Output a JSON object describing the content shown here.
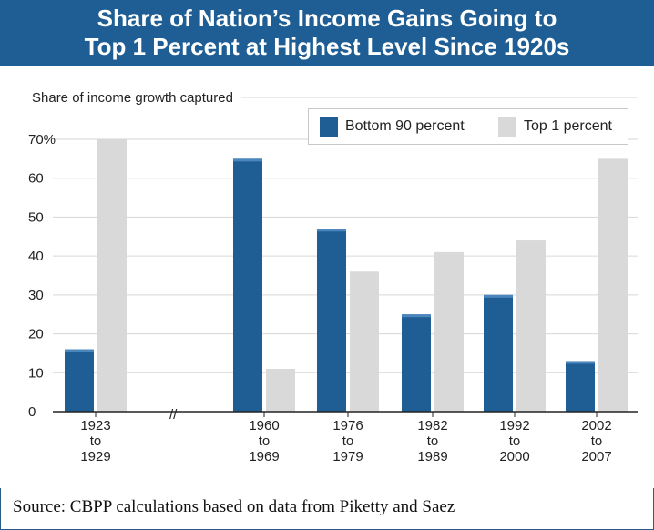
{
  "title": {
    "line1": "Share of Nation’s Income Gains Going to",
    "line2": "Top 1 Percent at Highest Level Since 1920s"
  },
  "source": "Source: CBPP calculations based on data from Piketty and Saez",
  "colors": {
    "title_bg": "#1f5e94",
    "bottom90": "#1f5e94",
    "top1": "#d9d9d9"
  },
  "chart_data": {
    "type": "bar",
    "title": "Share of Nation’s Income Gains Going to Top 1 Percent at Highest Level Since 1920s",
    "ylabel": "Share of income growth captured",
    "ylim": [
      0,
      70
    ],
    "y_ticks": [
      "0",
      "10",
      "20",
      "30",
      "40",
      "50",
      "60",
      "70%"
    ],
    "categories": [
      [
        "1923",
        "to",
        "1929"
      ],
      [
        "1960",
        "to",
        "1969"
      ],
      [
        "1976",
        "to",
        "1979"
      ],
      [
        "1982",
        "to",
        "1989"
      ],
      [
        "1992",
        "to",
        "2000"
      ],
      [
        "2002",
        "to",
        "2007"
      ]
    ],
    "axis_break": "//",
    "series": [
      {
        "name": "Bottom 90 percent",
        "values": [
          16,
          65,
          47,
          25,
          30,
          13
        ]
      },
      {
        "name": "Top 1 percent",
        "values": [
          70,
          11,
          36,
          41,
          44,
          65
        ]
      }
    ],
    "legend": "top-right",
    "grid": true
  }
}
